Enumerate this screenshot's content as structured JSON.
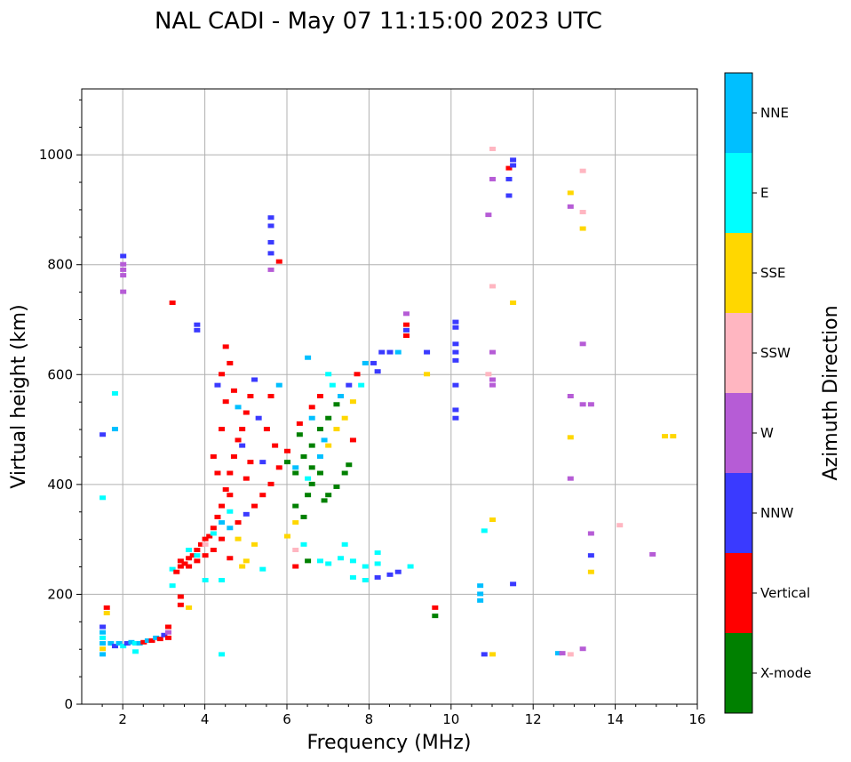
{
  "chart_data": {
    "type": "scatter",
    "title": "NAL CADI - May 07 11:15:00 2023 UTC",
    "xlabel": "Frequency (MHz)",
    "ylabel": "Virtual height (km)",
    "xlim": [
      1,
      16
    ],
    "ylim": [
      0,
      1120
    ],
    "xticks": [
      2,
      4,
      6,
      8,
      10,
      12,
      14,
      16
    ],
    "yticks": [
      0,
      200,
      400,
      600,
      800,
      1000
    ],
    "grid": true,
    "colorbar": {
      "label": "Azimuth Direction",
      "categories": [
        {
          "name": "X-mode",
          "color": "#008000"
        },
        {
          "name": "Vertical",
          "color": "#ff0000"
        },
        {
          "name": "NNW",
          "color": "#3a3aff"
        },
        {
          "name": "W",
          "color": "#b65cd6"
        },
        {
          "name": "SSW",
          "color": "#ffb6c1"
        },
        {
          "name": "SSE",
          "color": "#ffd700"
        },
        {
          "name": "E",
          "color": "#00ffff"
        },
        {
          "name": "NNE",
          "color": "#00bfff"
        }
      ]
    },
    "points": [
      {
        "f": 2.0,
        "h": 815,
        "c": "NNW"
      },
      {
        "f": 2.0,
        "h": 800,
        "c": "W"
      },
      {
        "f": 2.0,
        "h": 790,
        "c": "W"
      },
      {
        "f": 2.0,
        "h": 780,
        "c": "W"
      },
      {
        "f": 2.0,
        "h": 750,
        "c": "W"
      },
      {
        "f": 1.8,
        "h": 500,
        "c": "NNE"
      },
      {
        "f": 1.5,
        "h": 490,
        "c": "NNW"
      },
      {
        "f": 1.8,
        "h": 565,
        "c": "E"
      },
      {
        "f": 1.5,
        "h": 375,
        "c": "E"
      },
      {
        "f": 3.2,
        "h": 730,
        "c": "Vertical"
      },
      {
        "f": 3.8,
        "h": 690,
        "c": "NNW"
      },
      {
        "f": 3.8,
        "h": 680,
        "c": "NNW"
      },
      {
        "f": 5.6,
        "h": 885,
        "c": "NNW"
      },
      {
        "f": 5.6,
        "h": 870,
        "c": "NNW"
      },
      {
        "f": 5.6,
        "h": 840,
        "c": "NNW"
      },
      {
        "f": 5.6,
        "h": 820,
        "c": "NNW"
      },
      {
        "f": 5.6,
        "h": 790,
        "c": "W"
      },
      {
        "f": 5.8,
        "h": 805,
        "c": "Vertical"
      },
      {
        "f": 1.5,
        "h": 140,
        "c": "NNW"
      },
      {
        "f": 1.5,
        "h": 130,
        "c": "NNE"
      },
      {
        "f": 1.5,
        "h": 120,
        "c": "E"
      },
      {
        "f": 1.5,
        "h": 110,
        "c": "NNE"
      },
      {
        "f": 1.5,
        "h": 100,
        "c": "SSE"
      },
      {
        "f": 1.5,
        "h": 90,
        "c": "NNE"
      },
      {
        "f": 1.6,
        "h": 175,
        "c": "Vertical"
      },
      {
        "f": 1.6,
        "h": 165,
        "c": "SSE"
      },
      {
        "f": 1.7,
        "h": 110,
        "c": "NNE"
      },
      {
        "f": 1.8,
        "h": 105,
        "c": "NNW"
      },
      {
        "f": 1.9,
        "h": 110,
        "c": "NNE"
      },
      {
        "f": 2.0,
        "h": 105,
        "c": "E"
      },
      {
        "f": 2.1,
        "h": 110,
        "c": "NNW"
      },
      {
        "f": 2.2,
        "h": 112,
        "c": "NNE"
      },
      {
        "f": 2.3,
        "h": 110,
        "c": "E"
      },
      {
        "f": 2.3,
        "h": 95,
        "c": "E"
      },
      {
        "f": 2.4,
        "h": 110,
        "c": "NNE"
      },
      {
        "f": 2.5,
        "h": 112,
        "c": "Vertical"
      },
      {
        "f": 2.6,
        "h": 115,
        "c": "NNE"
      },
      {
        "f": 2.7,
        "h": 115,
        "c": "Vertical"
      },
      {
        "f": 2.8,
        "h": 120,
        "c": "NNE"
      },
      {
        "f": 2.9,
        "h": 118,
        "c": "Vertical"
      },
      {
        "f": 3.0,
        "h": 125,
        "c": "NNW"
      },
      {
        "f": 3.1,
        "h": 140,
        "c": "Vertical"
      },
      {
        "f": 3.1,
        "h": 130,
        "c": "W"
      },
      {
        "f": 3.1,
        "h": 120,
        "c": "Vertical"
      },
      {
        "f": 3.2,
        "h": 245,
        "c": "E"
      },
      {
        "f": 3.2,
        "h": 215,
        "c": "E"
      },
      {
        "f": 3.4,
        "h": 180,
        "c": "Vertical"
      },
      {
        "f": 3.6,
        "h": 175,
        "c": "SSE"
      },
      {
        "f": 3.4,
        "h": 195,
        "c": "Vertical"
      },
      {
        "f": 3.3,
        "h": 240,
        "c": "Vertical"
      },
      {
        "f": 3.4,
        "h": 250,
        "c": "Vertical"
      },
      {
        "f": 3.5,
        "h": 255,
        "c": "Vertical"
      },
      {
        "f": 3.6,
        "h": 265,
        "c": "Vertical"
      },
      {
        "f": 3.7,
        "h": 270,
        "c": "Vertical"
      },
      {
        "f": 3.8,
        "h": 280,
        "c": "Vertical"
      },
      {
        "f": 3.9,
        "h": 290,
        "c": "Vertical"
      },
      {
        "f": 4.0,
        "h": 300,
        "c": "Vertical"
      },
      {
        "f": 4.1,
        "h": 305,
        "c": "Vertical"
      },
      {
        "f": 4.2,
        "h": 320,
        "c": "Vertical"
      },
      {
        "f": 4.3,
        "h": 340,
        "c": "Vertical"
      },
      {
        "f": 4.4,
        "h": 360,
        "c": "Vertical"
      },
      {
        "f": 4.5,
        "h": 390,
        "c": "Vertical"
      },
      {
        "f": 4.6,
        "h": 420,
        "c": "Vertical"
      },
      {
        "f": 4.7,
        "h": 450,
        "c": "Vertical"
      },
      {
        "f": 4.8,
        "h": 480,
        "c": "Vertical"
      },
      {
        "f": 4.9,
        "h": 500,
        "c": "Vertical"
      },
      {
        "f": 5.0,
        "h": 530,
        "c": "Vertical"
      },
      {
        "f": 5.1,
        "h": 560,
        "c": "Vertical"
      },
      {
        "f": 5.2,
        "h": 590,
        "c": "NNW"
      },
      {
        "f": 3.4,
        "h": 260,
        "c": "Vertical"
      },
      {
        "f": 3.6,
        "h": 250,
        "c": "Vertical"
      },
      {
        "f": 3.8,
        "h": 260,
        "c": "Vertical"
      },
      {
        "f": 4.0,
        "h": 270,
        "c": "Vertical"
      },
      {
        "f": 4.2,
        "h": 280,
        "c": "Vertical"
      },
      {
        "f": 4.4,
        "h": 300,
        "c": "Vertical"
      },
      {
        "f": 4.6,
        "h": 320,
        "c": "NNE"
      },
      {
        "f": 4.8,
        "h": 330,
        "c": "Vertical"
      },
      {
        "f": 5.0,
        "h": 345,
        "c": "NNW"
      },
      {
        "f": 5.2,
        "h": 360,
        "c": "Vertical"
      },
      {
        "f": 5.4,
        "h": 380,
        "c": "Vertical"
      },
      {
        "f": 5.6,
        "h": 400,
        "c": "Vertical"
      },
      {
        "f": 5.8,
        "h": 430,
        "c": "Vertical"
      },
      {
        "f": 6.0,
        "h": 460,
        "c": "Vertical"
      },
      {
        "f": 4.2,
        "h": 450,
        "c": "Vertical"
      },
      {
        "f": 4.3,
        "h": 420,
        "c": "Vertical"
      },
      {
        "f": 4.4,
        "h": 500,
        "c": "Vertical"
      },
      {
        "f": 4.5,
        "h": 550,
        "c": "Vertical"
      },
      {
        "f": 4.4,
        "h": 600,
        "c": "Vertical"
      },
      {
        "f": 4.5,
        "h": 650,
        "c": "Vertical"
      },
      {
        "f": 4.6,
        "h": 620,
        "c": "Vertical"
      },
      {
        "f": 4.3,
        "h": 580,
        "c": "NNW"
      },
      {
        "f": 4.7,
        "h": 570,
        "c": "Vertical"
      },
      {
        "f": 4.8,
        "h": 540,
        "c": "NNE"
      },
      {
        "f": 5.3,
        "h": 520,
        "c": "NNW"
      },
      {
        "f": 5.5,
        "h": 500,
        "c": "Vertical"
      },
      {
        "f": 5.7,
        "h": 470,
        "c": "Vertical"
      },
      {
        "f": 5.4,
        "h": 440,
        "c": "NNW"
      },
      {
        "f": 5.0,
        "h": 410,
        "c": "Vertical"
      },
      {
        "f": 4.6,
        "h": 380,
        "c": "Vertical"
      },
      {
        "f": 4.9,
        "h": 470,
        "c": "NNW"
      },
      {
        "f": 5.1,
        "h": 440,
        "c": "Vertical"
      },
      {
        "f": 5.6,
        "h": 560,
        "c": "Vertical"
      },
      {
        "f": 5.8,
        "h": 580,
        "c": "NNE"
      },
      {
        "f": 3.6,
        "h": 280,
        "c": "E"
      },
      {
        "f": 3.8,
        "h": 270,
        "c": "E"
      },
      {
        "f": 4.0,
        "h": 290,
        "c": "SSW"
      },
      {
        "f": 4.2,
        "h": 310,
        "c": "E"
      },
      {
        "f": 4.4,
        "h": 330,
        "c": "NNE"
      },
      {
        "f": 4.6,
        "h": 350,
        "c": "E"
      },
      {
        "f": 4.8,
        "h": 300,
        "c": "SSE"
      },
      {
        "f": 5.0,
        "h": 260,
        "c": "SSE"
      },
      {
        "f": 5.2,
        "h": 290,
        "c": "SSE"
      },
      {
        "f": 4.9,
        "h": 250,
        "c": "SSE"
      },
      {
        "f": 4.6,
        "h": 265,
        "c": "Vertical"
      },
      {
        "f": 4.0,
        "h": 225,
        "c": "E"
      },
      {
        "f": 4.4,
        "h": 225,
        "c": "E"
      },
      {
        "f": 4.4,
        "h": 90,
        "c": "E"
      },
      {
        "f": 5.4,
        "h": 245,
        "c": "E"
      },
      {
        "f": 6.2,
        "h": 330,
        "c": "SSE"
      },
      {
        "f": 6.0,
        "h": 305,
        "c": "SSE"
      },
      {
        "f": 6.2,
        "h": 250,
        "c": "Vertical"
      },
      {
        "f": 6.2,
        "h": 280,
        "c": "SSW"
      },
      {
        "f": 6.4,
        "h": 290,
        "c": "E"
      },
      {
        "f": 6.5,
        "h": 260,
        "c": "X-mode"
      },
      {
        "f": 6.8,
        "h": 260,
        "c": "E"
      },
      {
        "f": 7.0,
        "h": 255,
        "c": "E"
      },
      {
        "f": 7.3,
        "h": 265,
        "c": "E"
      },
      {
        "f": 7.6,
        "h": 260,
        "c": "E"
      },
      {
        "f": 7.9,
        "h": 250,
        "c": "E"
      },
      {
        "f": 8.2,
        "h": 255,
        "c": "E"
      },
      {
        "f": 7.6,
        "h": 230,
        "c": "E"
      },
      {
        "f": 7.9,
        "h": 225,
        "c": "E"
      },
      {
        "f": 8.2,
        "h": 230,
        "c": "NNW"
      },
      {
        "f": 8.5,
        "h": 235,
        "c": "NNW"
      },
      {
        "f": 8.7,
        "h": 240,
        "c": "NNW"
      },
      {
        "f": 9.0,
        "h": 250,
        "c": "E"
      },
      {
        "f": 7.4,
        "h": 290,
        "c": "E"
      },
      {
        "f": 8.2,
        "h": 275,
        "c": "E"
      },
      {
        "f": 6.2,
        "h": 360,
        "c": "X-mode"
      },
      {
        "f": 6.4,
        "h": 340,
        "c": "X-mode"
      },
      {
        "f": 6.5,
        "h": 380,
        "c": "X-mode"
      },
      {
        "f": 6.6,
        "h": 400,
        "c": "X-mode"
      },
      {
        "f": 6.8,
        "h": 420,
        "c": "X-mode"
      },
      {
        "f": 6.9,
        "h": 370,
        "c": "X-mode"
      },
      {
        "f": 7.0,
        "h": 380,
        "c": "X-mode"
      },
      {
        "f": 7.2,
        "h": 395,
        "c": "X-mode"
      },
      {
        "f": 7.4,
        "h": 420,
        "c": "X-mode"
      },
      {
        "f": 7.5,
        "h": 435,
        "c": "X-mode"
      },
      {
        "f": 6.4,
        "h": 450,
        "c": "X-mode"
      },
      {
        "f": 6.6,
        "h": 470,
        "c": "X-mode"
      },
      {
        "f": 6.8,
        "h": 500,
        "c": "X-mode"
      },
      {
        "f": 7.0,
        "h": 520,
        "c": "X-mode"
      },
      {
        "f": 7.2,
        "h": 545,
        "c": "X-mode"
      },
      {
        "f": 6.2,
        "h": 420,
        "c": "X-mode"
      },
      {
        "f": 6.0,
        "h": 440,
        "c": "X-mode"
      },
      {
        "f": 6.6,
        "h": 430,
        "c": "X-mode"
      },
      {
        "f": 6.3,
        "h": 490,
        "c": "X-mode"
      },
      {
        "f": 6.9,
        "h": 480,
        "c": "NNE"
      },
      {
        "f": 6.2,
        "h": 430,
        "c": "NNE"
      },
      {
        "f": 6.5,
        "h": 410,
        "c": "E"
      },
      {
        "f": 6.8,
        "h": 450,
        "c": "NNE"
      },
      {
        "f": 7.0,
        "h": 470,
        "c": "SSE"
      },
      {
        "f": 7.2,
        "h": 500,
        "c": "SSE"
      },
      {
        "f": 7.4,
        "h": 520,
        "c": "SSE"
      },
      {
        "f": 7.6,
        "h": 550,
        "c": "SSE"
      },
      {
        "f": 7.8,
        "h": 580,
        "c": "E"
      },
      {
        "f": 7.3,
        "h": 560,
        "c": "NNE"
      },
      {
        "f": 7.1,
        "h": 580,
        "c": "E"
      },
      {
        "f": 7.0,
        "h": 600,
        "c": "E"
      },
      {
        "f": 6.5,
        "h": 630,
        "c": "NNE"
      },
      {
        "f": 7.7,
        "h": 600,
        "c": "Vertical"
      },
      {
        "f": 7.9,
        "h": 620,
        "c": "NNE"
      },
      {
        "f": 7.6,
        "h": 480,
        "c": "Vertical"
      },
      {
        "f": 6.8,
        "h": 560,
        "c": "Vertical"
      },
      {
        "f": 6.6,
        "h": 540,
        "c": "Vertical"
      },
      {
        "f": 7.5,
        "h": 580,
        "c": "NNW"
      },
      {
        "f": 6.6,
        "h": 520,
        "c": "NNE"
      },
      {
        "f": 6.3,
        "h": 510,
        "c": "Vertical"
      },
      {
        "f": 8.1,
        "h": 620,
        "c": "NNW"
      },
      {
        "f": 8.3,
        "h": 640,
        "c": "NNW"
      },
      {
        "f": 8.5,
        "h": 640,
        "c": "NNW"
      },
      {
        "f": 8.7,
        "h": 640,
        "c": "NNE"
      },
      {
        "f": 8.9,
        "h": 690,
        "c": "Vertical"
      },
      {
        "f": 8.9,
        "h": 680,
        "c": "NNW"
      },
      {
        "f": 8.9,
        "h": 670,
        "c": "Vertical"
      },
      {
        "f": 8.9,
        "h": 710,
        "c": "W"
      },
      {
        "f": 8.2,
        "h": 605,
        "c": "NNW"
      },
      {
        "f": 9.4,
        "h": 640,
        "c": "NNW"
      },
      {
        "f": 9.4,
        "h": 600,
        "c": "SSE"
      },
      {
        "f": 9.6,
        "h": 175,
        "c": "Vertical"
      },
      {
        "f": 9.6,
        "h": 160,
        "c": "X-mode"
      },
      {
        "f": 10.1,
        "h": 695,
        "c": "NNW"
      },
      {
        "f": 10.1,
        "h": 685,
        "c": "NNW"
      },
      {
        "f": 10.1,
        "h": 655,
        "c": "NNW"
      },
      {
        "f": 10.1,
        "h": 640,
        "c": "NNW"
      },
      {
        "f": 10.1,
        "h": 625,
        "c": "NNW"
      },
      {
        "f": 10.1,
        "h": 580,
        "c": "NNW"
      },
      {
        "f": 10.1,
        "h": 535,
        "c": "NNW"
      },
      {
        "f": 10.1,
        "h": 520,
        "c": "NNW"
      },
      {
        "f": 10.7,
        "h": 215,
        "c": "NNE"
      },
      {
        "f": 10.7,
        "h": 200,
        "c": "NNE"
      },
      {
        "f": 10.7,
        "h": 188,
        "c": "NNE"
      },
      {
        "f": 10.8,
        "h": 90,
        "c": "NNW"
      },
      {
        "f": 11.0,
        "h": 90,
        "c": "SSE"
      },
      {
        "f": 10.8,
        "h": 315,
        "c": "E"
      },
      {
        "f": 11.0,
        "h": 335,
        "c": "SSE"
      },
      {
        "f": 10.9,
        "h": 600,
        "c": "SSW"
      },
      {
        "f": 11.0,
        "h": 590,
        "c": "W"
      },
      {
        "f": 11.0,
        "h": 580,
        "c": "W"
      },
      {
        "f": 11.0,
        "h": 640,
        "c": "W"
      },
      {
        "f": 11.0,
        "h": 760,
        "c": "SSW"
      },
      {
        "f": 10.9,
        "h": 890,
        "c": "W"
      },
      {
        "f": 11.0,
        "h": 955,
        "c": "W"
      },
      {
        "f": 11.0,
        "h": 1010,
        "c": "SSW"
      },
      {
        "f": 11.4,
        "h": 975,
        "c": "Vertical"
      },
      {
        "f": 11.4,
        "h": 955,
        "c": "NNW"
      },
      {
        "f": 11.5,
        "h": 990,
        "c": "NNW"
      },
      {
        "f": 11.5,
        "h": 980,
        "c": "NNW"
      },
      {
        "f": 11.4,
        "h": 925,
        "c": "NNW"
      },
      {
        "f": 11.5,
        "h": 730,
        "c": "SSE"
      },
      {
        "f": 11.5,
        "h": 218,
        "c": "NNW"
      },
      {
        "f": 12.6,
        "h": 92,
        "c": "NNE"
      },
      {
        "f": 12.7,
        "h": 92,
        "c": "W"
      },
      {
        "f": 12.9,
        "h": 90,
        "c": "SSW"
      },
      {
        "f": 13.2,
        "h": 100,
        "c": "W"
      },
      {
        "f": 12.9,
        "h": 930,
        "c": "SSE"
      },
      {
        "f": 12.9,
        "h": 905,
        "c": "W"
      },
      {
        "f": 13.2,
        "h": 970,
        "c": "SSW"
      },
      {
        "f": 13.2,
        "h": 895,
        "c": "SSW"
      },
      {
        "f": 13.2,
        "h": 865,
        "c": "SSE"
      },
      {
        "f": 13.2,
        "h": 655,
        "c": "W"
      },
      {
        "f": 12.9,
        "h": 560,
        "c": "W"
      },
      {
        "f": 13.2,
        "h": 545,
        "c": "W"
      },
      {
        "f": 13.4,
        "h": 545,
        "c": "W"
      },
      {
        "f": 12.9,
        "h": 485,
        "c": "SSE"
      },
      {
        "f": 12.9,
        "h": 410,
        "c": "W"
      },
      {
        "f": 13.4,
        "h": 310,
        "c": "W"
      },
      {
        "f": 13.4,
        "h": 270,
        "c": "NNW"
      },
      {
        "f": 13.4,
        "h": 240,
        "c": "SSE"
      },
      {
        "f": 14.1,
        "h": 325,
        "c": "SSW"
      },
      {
        "f": 14.9,
        "h": 272,
        "c": "W"
      },
      {
        "f": 15.2,
        "h": 487,
        "c": "SSE"
      },
      {
        "f": 15.4,
        "h": 487,
        "c": "SSE"
      }
    ]
  }
}
